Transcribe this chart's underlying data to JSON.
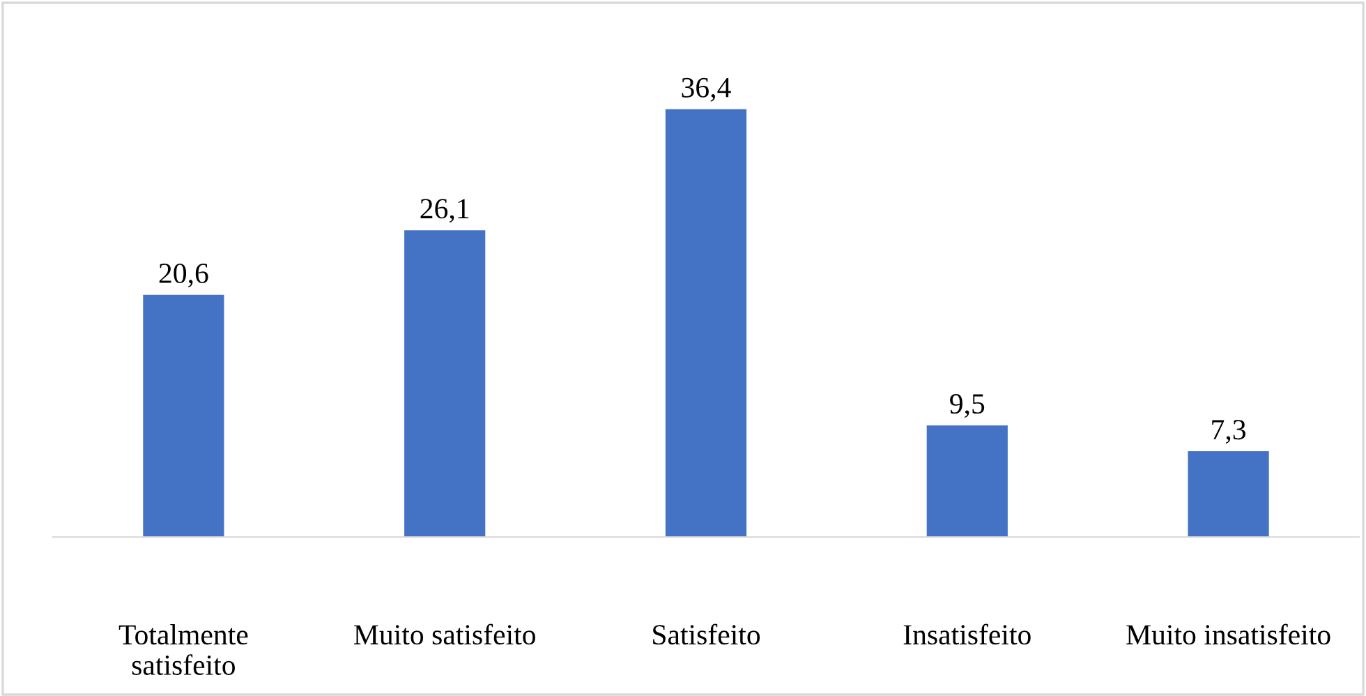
{
  "chart_data": {
    "type": "bar",
    "categories": [
      "Totalmente\nsatisfeito",
      "Muito satisfeito",
      "Satisfeito",
      "Insatisfeito",
      "Muito insatisfeito"
    ],
    "values": [
      20.6,
      26.1,
      36.4,
      9.5,
      7.3
    ],
    "value_labels": [
      "20,6",
      "26,1",
      "36,4",
      "9,5",
      "7,3"
    ],
    "color": "#4472c4"
  }
}
